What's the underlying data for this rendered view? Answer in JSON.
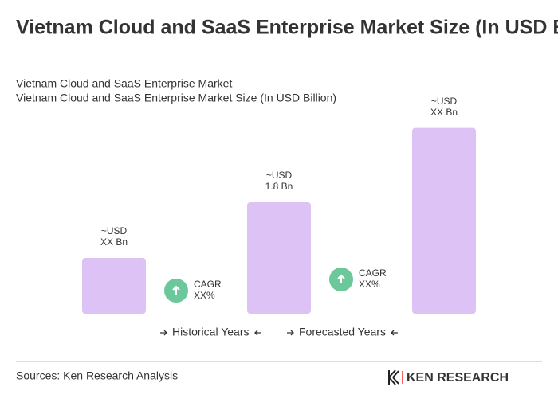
{
  "chart_data": {
    "type": "bar",
    "title": "Vietnam Cloud and SaaS Enterprise Market Size (In USD Billion)",
    "subtitle": [
      "Vietnam Cloud and SaaS Enterprise Market",
      "Vietnam Cloud and SaaS Enterprise Market Size (In USD Billion)"
    ],
    "values": [
      0.9,
      1.8,
      3.0
    ],
    "value_labels": [
      [
        "~USD",
        "XX Bn"
      ],
      [
        "~USD",
        "1.8 Bn"
      ],
      [
        "~USD",
        "XX Bn"
      ]
    ],
    "color": "#dcc2f5",
    "annotations": [
      [
        "CAGR",
        "XX%"
      ],
      [
        "CAGR",
        "XX%"
      ]
    ],
    "legend": [
      "Historical Years",
      "Forecasted Years"
    ],
    "source": "Sources: Ken Research Analysis",
    "logo": "KEN RESEARCH"
  }
}
